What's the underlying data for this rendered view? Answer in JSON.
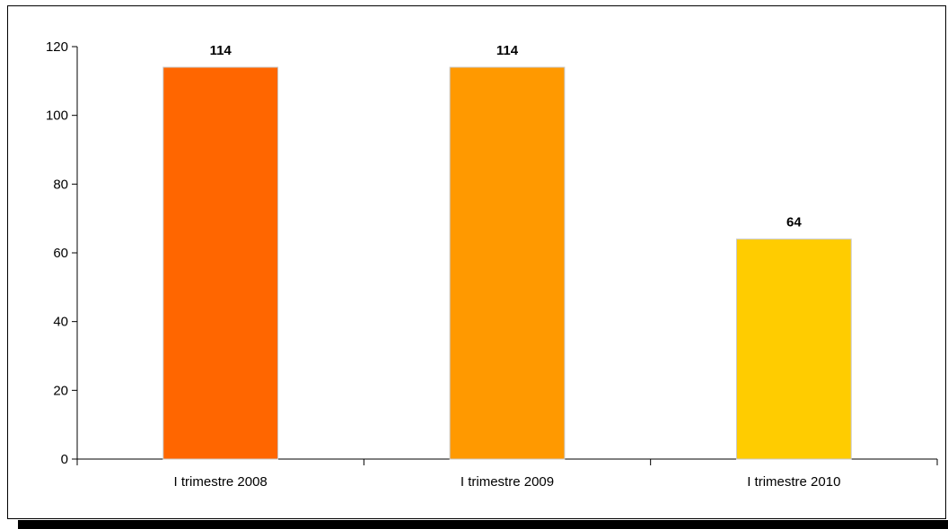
{
  "chart_data": {
    "type": "bar",
    "categories": [
      "I trimestre 2008",
      "I trimestre 2009",
      "I trimestre 2010"
    ],
    "values": [
      114,
      114,
      64
    ],
    "data_labels": [
      "114",
      "114",
      "64"
    ],
    "colors": [
      "#FF6600",
      "#FF9900",
      "#FFCC00"
    ],
    "bar_border_color": "#C8C8C8",
    "title": "",
    "xlabel": "",
    "ylabel": "",
    "ylim": [
      0,
      120
    ],
    "yticks": [
      0,
      20,
      40,
      60,
      80,
      100,
      120
    ],
    "ytick_labels": [
      "0",
      "20",
      "40",
      "60",
      "80",
      "100",
      "120"
    ],
    "grid": false,
    "legend": "none"
  }
}
